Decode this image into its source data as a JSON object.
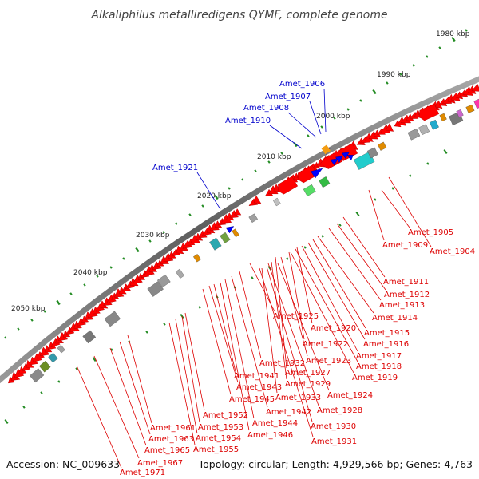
{
  "title": "Alkaliphilus metalliredigens QYMF, complete genome",
  "footer": {
    "accession": "Accession: NC_009633",
    "topology": "Topology: circular; Length: 4,929,566 bp; Genes: 4,763"
  },
  "colors": {
    "forward_gene": "#0000ff",
    "reverse_gene": "#ff0000",
    "forward_label": "#0000cc",
    "reverse_label": "#dd0000",
    "backbone": "#707070",
    "tick": "#228b22"
  },
  "kbp_labels": [
    "1980 kbp",
    "1990 kbp",
    "2000 kbp",
    "2010 kbp",
    "2020 kbp",
    "2030 kbp",
    "2040 kbp",
    "2050 kbp"
  ],
  "forward_genes": [
    "Amet_1906",
    "Amet_1907",
    "Amet_1908",
    "Amet_1910",
    "Amet_1921"
  ],
  "reverse_genes": [
    "Amet_1905",
    "Amet_1909",
    "Amet_1904",
    "Amet_1911",
    "Amet_1912",
    "Amet_1913",
    "Amet_1914",
    "Amet_1925",
    "Amet_1920",
    "Amet_1915",
    "Amet_1922",
    "Amet_1916",
    "Amet_1923",
    "Amet_1917",
    "Amet_1918",
    "Amet_1932",
    "Amet_1919",
    "Amet_1941",
    "Amet_1927",
    "Amet_1929",
    "Amet_1943",
    "Amet_1924",
    "Amet_1945",
    "Amet_1933",
    "Amet_1942",
    "Amet_1928",
    "Amet_1952",
    "Amet_1944",
    "Amet_1930",
    "Amet_1961",
    "Amet_1953",
    "Amet_1946",
    "Amet_1963",
    "Amet_1954",
    "Amet_1931",
    "Amet_1955",
    "Amet_1965",
    "Amet_1967",
    "Amet_1971"
  ]
}
